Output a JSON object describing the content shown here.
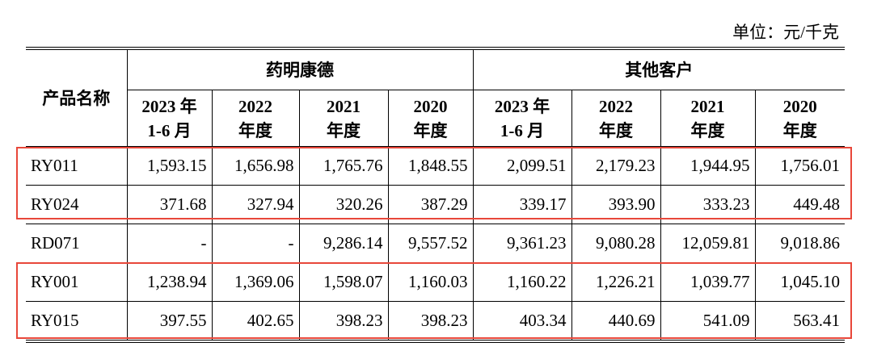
{
  "unit": "单位：元/千克",
  "table": {
    "header": {
      "product": "产品名称",
      "groups": [
        "药明康德",
        "其他客户"
      ]
    },
    "subheaders": [
      [
        "2023 年",
        "1-6 月"
      ],
      [
        "2022",
        "年度"
      ],
      [
        "2021",
        "年度"
      ],
      [
        "2020",
        "年度"
      ],
      [
        "2023 年",
        "1-6 月"
      ],
      [
        "2022",
        "年度"
      ],
      [
        "2021",
        "年度"
      ],
      [
        "2020",
        "年度"
      ]
    ],
    "rows": [
      [
        "RY011",
        "1,593.15",
        "1,656.98",
        "1,765.76",
        "1,848.55",
        "2,099.51",
        "2,179.23",
        "1,944.95",
        "1,756.01"
      ],
      [
        "RY024",
        "371.68",
        "327.94",
        "320.26",
        "387.29",
        "339.17",
        "393.90",
        "333.23",
        "449.48"
      ],
      [
        "RD071",
        "-",
        "-",
        "9,286.14",
        "9,557.52",
        "9,361.23",
        "9,080.28",
        "12,059.81",
        "9,018.86"
      ],
      [
        "RY001",
        "1,238.94",
        "1,369.06",
        "1,598.07",
        "1,160.03",
        "1,160.22",
        "1,226.21",
        "1,039.77",
        "1,045.10"
      ],
      [
        "RY015",
        "397.55",
        "402.65",
        "398.23",
        "398.23",
        "403.34",
        "440.69",
        "541.09",
        "563.41"
      ]
    ]
  }
}
